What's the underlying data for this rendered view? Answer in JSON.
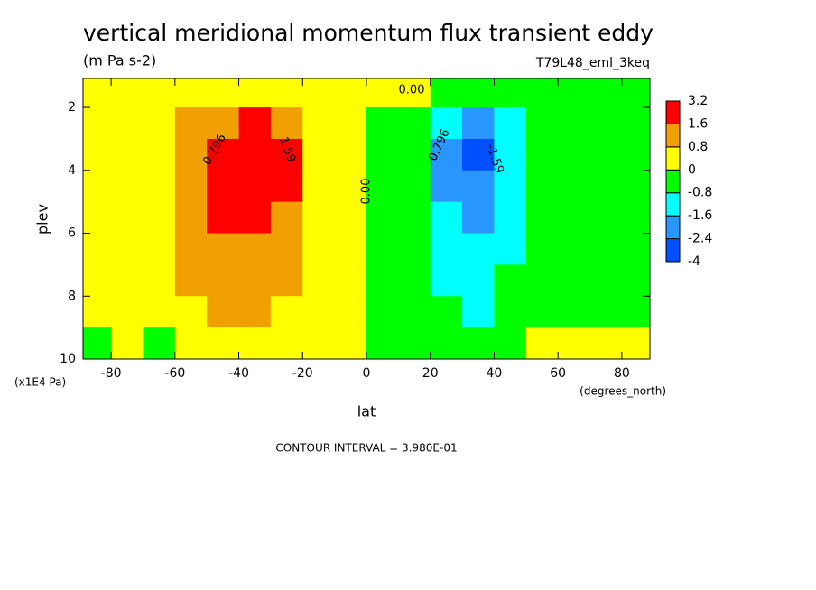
{
  "chart_data": {
    "type": "contour",
    "title": "vertical meridional momentum flux transient eddy",
    "subtitle": "(m Pa s-2)",
    "annotation": "T79L48_eml_3keq",
    "x_label": "lat",
    "y_label": "plev",
    "x_unit": "(degrees_north)",
    "y_unit": "(x1E4 Pa)",
    "footer": "CONTOUR INTERVAL = 3.980E-01",
    "x": [
      -85,
      -75,
      -65,
      -55,
      -45,
      -35,
      -25,
      -15,
      -5,
      5,
      15,
      25,
      35,
      45,
      55,
      65,
      75,
      85
    ],
    "y": [
      1.5,
      2.5,
      3.5,
      4.5,
      5.5,
      6.5,
      7.5,
      8.5,
      9.5
    ],
    "z": [
      [
        0.1,
        0.1,
        0.2,
        0.3,
        0.4,
        0.5,
        0.4,
        0.2,
        0.1,
        0.1,
        0.05,
        -0.1,
        -0.2,
        -0.2,
        -0.1,
        -0.1,
        -0.1,
        -0.1
      ],
      [
        0.1,
        0.2,
        0.4,
        0.8,
        1.3,
        1.8,
        1.4,
        0.5,
        0.2,
        -0.1,
        -0.5,
        -1.4,
        -1.8,
        -1.0,
        -0.5,
        -0.2,
        -0.1,
        -0.1
      ],
      [
        0.1,
        0.3,
        0.6,
        0.9,
        1.8,
        2.8,
        2.0,
        0.6,
        0.2,
        -0.1,
        -0.6,
        -1.8,
        -2.8,
        -1.2,
        -0.6,
        -0.3,
        -0.1,
        -0.1
      ],
      [
        0.1,
        0.3,
        0.6,
        0.9,
        1.8,
        2.7,
        1.8,
        0.5,
        0.2,
        -0.1,
        -0.6,
        -1.7,
        -2.2,
        -1.1,
        -0.5,
        -0.3,
        -0.1,
        -0.1
      ],
      [
        0.1,
        0.3,
        0.5,
        0.9,
        1.7,
        2.2,
        1.5,
        0.5,
        0.2,
        -0.1,
        -0.5,
        -1.3,
        -1.7,
        -1.0,
        -0.5,
        -0.2,
        -0.1,
        -0.1
      ],
      [
        0.1,
        0.2,
        0.5,
        0.9,
        1.3,
        1.5,
        1.1,
        0.4,
        0.1,
        -0.1,
        -0.5,
        -1.1,
        -1.3,
        -0.9,
        -0.4,
        -0.2,
        -0.1,
        -0.1
      ],
      [
        0.1,
        0.2,
        0.4,
        0.8,
        1.1,
        1.2,
        0.9,
        0.3,
        0.1,
        -0.1,
        -0.4,
        -0.9,
        -1.1,
        -0.8,
        -0.3,
        -0.2,
        -0.1,
        -0.1
      ],
      [
        0.05,
        0.1,
        0.3,
        0.5,
        0.8,
        0.9,
        0.6,
        0.2,
        0.1,
        -0.1,
        -0.3,
        -0.8,
        -0.9,
        -0.6,
        -0.3,
        -0.1,
        -0.05,
        -0.05
      ],
      [
        -0.1,
        0.05,
        -0.1,
        0.1,
        0.2,
        0.3,
        0.2,
        0.1,
        0.05,
        -0.05,
        -0.1,
        -0.2,
        -0.2,
        -0.1,
        0.05,
        0.05,
        0.05,
        0.05
      ]
    ],
    "levels": [
      -4,
      -2.4,
      -1.6,
      -0.8,
      0,
      0.8,
      1.6,
      3.2
    ],
    "colors": [
      "#0050ff",
      "#2a96ff",
      "#00ffff",
      "#00ff00",
      "#ffff00",
      "#f0a000",
      "#ff0000"
    ],
    "contour_labels": [
      "0.796",
      "1.59",
      "0.00",
      "-0.796",
      "-1.59",
      "0.00"
    ],
    "xlim": [
      -88.8,
      88.8
    ],
    "ylim": [
      10,
      1.08
    ],
    "xticks": [
      -80,
      -60,
      -40,
      -20,
      0,
      20,
      40,
      60,
      80
    ],
    "yticks": [
      2,
      4,
      6,
      8,
      10
    ],
    "grid": false
  }
}
